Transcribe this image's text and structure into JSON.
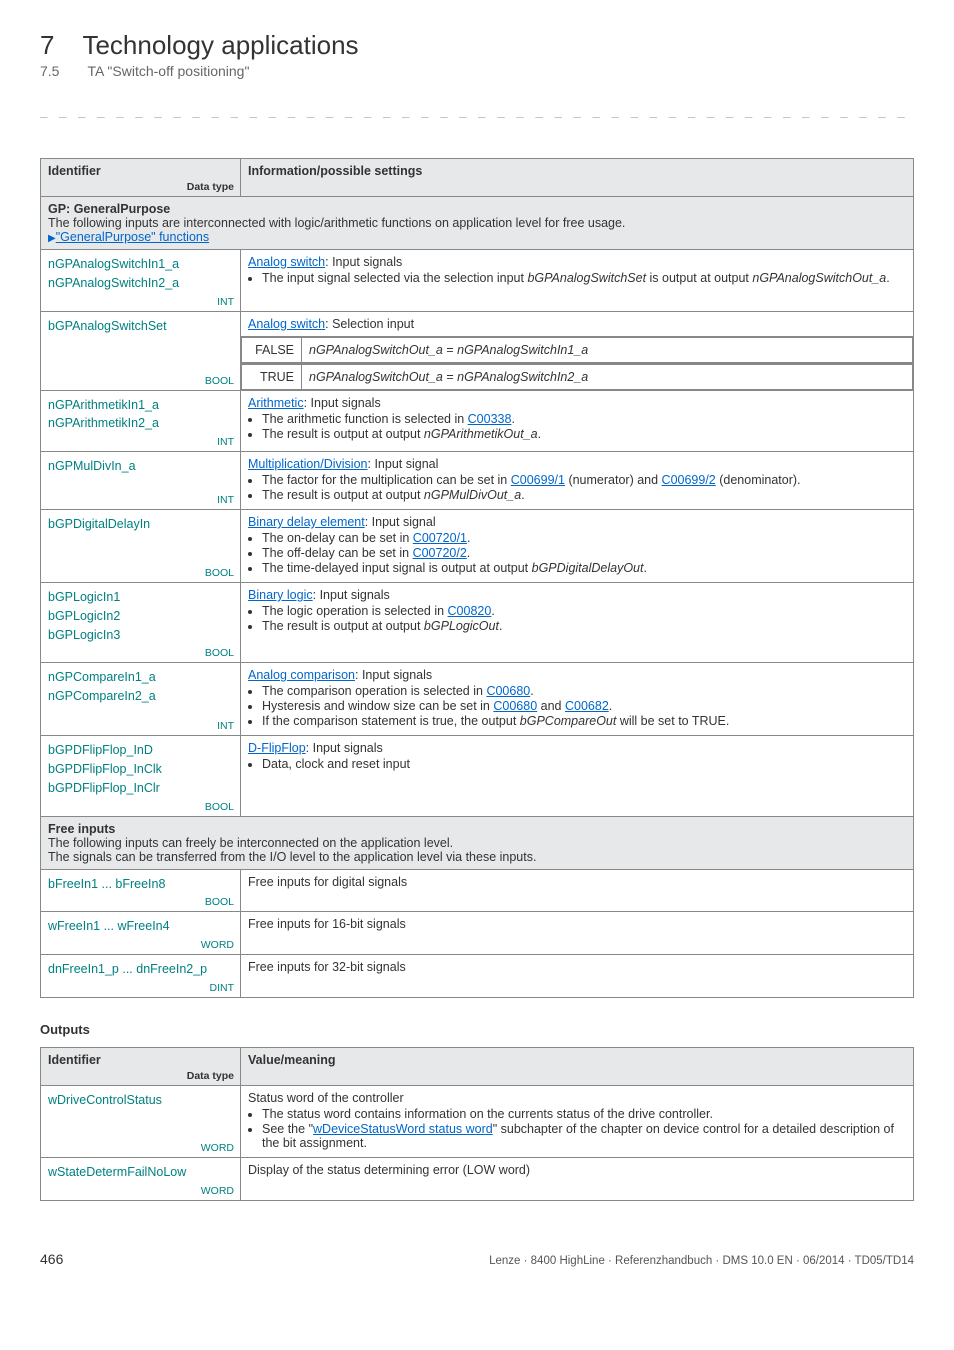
{
  "header": {
    "chapter_num": "7",
    "chapter_title": "Technology applications",
    "section_num": "7.5",
    "section_title": "TA \"Switch-off positioning\""
  },
  "separator": "_ _ _ _ _ _ _ _ _ _ _ _ _ _ _ _ _ _ _ _ _ _ _ _ _ _ _ _ _ _ _ _ _ _ _ _ _ _ _ _ _ _ _ _ _ _ _ _ _ _ _ _ _ _ _ _ _ _ _ _ _ _ _ _",
  "table1": {
    "head_id": "Identifier",
    "head_dt": "Data type",
    "head_info": "Information/possible settings",
    "gp_section": {
      "title": "GP: GeneralPurpose",
      "desc": "The following inputs are interconnected with logic/arithmetic functions on application level for free usage.",
      "link": "\"GeneralPurpose\" functions"
    },
    "rows": {
      "analog_in": {
        "id1": "nGPAnalogSwitchIn1_a",
        "id2": "nGPAnalogSwitchIn2_a",
        "dt": "INT",
        "link": "Analog switch",
        "after_link": ": Input signals",
        "bullet1a": "The input signal selected via the selection input ",
        "bullet1b": "bGPAnalogSwitchSet",
        "bullet1c": " is output at output ",
        "bullet1d": "nGPAnalogSwitchOut_a",
        "bullet1e": "."
      },
      "analog_switchset": {
        "id": "bGPAnalogSwitchSet",
        "dt": "BOOL",
        "link": "Analog switch",
        "after_link": ": Selection input",
        "false_lbl": "FALSE",
        "false_a": "nGPAnalogSwitchOut_a",
        "false_b": " = ",
        "false_c": "nGPAnalogSwitchIn1_a",
        "true_lbl": "TRUE",
        "true_a": "nGPAnalogSwitchOut_a",
        "true_b": " = ",
        "true_c": "nGPAnalogSwitchIn2_a"
      },
      "arith": {
        "id1": "nGPArithmetikIn1_a",
        "id2": "nGPArithmetikIn2_a",
        "dt": "INT",
        "link": "Arithmetic",
        "after_link": ": Input signals",
        "b1a": "The arithmetic function is selected in ",
        "b1link": "C00338",
        "b1c": ".",
        "b2a": "The result is output at output ",
        "b2b": "nGPArithmetikOut_a",
        "b2c": "."
      },
      "muldiv": {
        "id": "nGPMulDivIn_a",
        "dt": "INT",
        "link": "Multiplication/Division",
        "after_link": ": Input signal",
        "b1a": "The factor for the multiplication can be set in ",
        "b1link": "C00699/1",
        "b1c": " (numerator) and ",
        "b1link2": "C00699/2",
        "b1e": " (denominator).",
        "b2a": "The result is output at output ",
        "b2b": "nGPMulDivOut_a",
        "b2c": "."
      },
      "delay": {
        "id": "bGPDigitalDelayIn",
        "dt": "BOOL",
        "link": "Binary delay element",
        "after_link": ": Input signal",
        "b1a": "The on-delay can be set in ",
        "b1link": "C00720/1",
        "b1c": ".",
        "b2a": "The off-delay can be set in ",
        "b2link": "C00720/2",
        "b2c": ".",
        "b3a": "The time-delayed input signal is output at output ",
        "b3b": "bGPDigitalDelayOut",
        "b3c": "."
      },
      "logic": {
        "id1": "bGPLogicIn1",
        "id2": "bGPLogicIn2",
        "id3": "bGPLogicIn3",
        "dt": "BOOL",
        "link": "Binary logic",
        "after_link": ": Input signals",
        "b1a": "The logic operation is selected in ",
        "b1link": "C00820",
        "b1c": ".",
        "b2a": "The result is output at output ",
        "b2b": "bGPLogicOut",
        "b2c": "."
      },
      "compare": {
        "id1": "nGPCompareIn1_a",
        "id2": "nGPCompareIn2_a",
        "dt": "INT",
        "link": "Analog comparison",
        "after_link": ": Input signals",
        "b1a": "The comparison operation is selected in ",
        "b1link": "C00680",
        "b1c": ".",
        "b2a": "Hysteresis and window size can be set in ",
        "b2link1": "C00680",
        "b2mid": " and ",
        "b2link2": "C00682",
        "b2c": ".",
        "b3a": "If the comparison statement is true, the output ",
        "b3b": "bGPCompareOut",
        "b3c": " will be set to TRUE."
      },
      "flipflop": {
        "id1": "bGPDFlipFlop_InD",
        "id2": "bGPDFlipFlop_InClk",
        "id3": "bGPDFlipFlop_InClr",
        "dt": "BOOL",
        "link": "D-FlipFlop",
        "after_link": ": Input signals",
        "b1": "Data, clock and reset input"
      }
    },
    "free_section": {
      "title": "Free inputs",
      "desc1": "The following inputs can freely be interconnected on the application level.",
      "desc2": "The signals can be transferred from the I/O level to the application level via these inputs."
    },
    "free_rows": {
      "r1": {
        "id": "bFreeIn1 ... bFreeIn8",
        "dt": "BOOL",
        "info": "Free inputs for digital signals"
      },
      "r2": {
        "id": "wFreeIn1 ... wFreeIn4",
        "dt": "WORD",
        "info": "Free inputs for 16-bit signals"
      },
      "r3": {
        "id": "dnFreeIn1_p ... dnFreeIn2_p",
        "dt": "DINT",
        "info": "Free inputs for 32-bit signals"
      }
    }
  },
  "outputs_heading": "Outputs",
  "table2": {
    "head_id": "Identifier",
    "head_dt": "Data type",
    "head_info": "Value/meaning",
    "rows": {
      "r1": {
        "id": "wDriveControlStatus",
        "dt": "WORD",
        "line1": "Status word of the controller",
        "b1": "The status word contains information on the currents status of the drive controller.",
        "b2a": "See the \"",
        "b2link": "wDeviceStatusWord status word",
        "b2c": "\" subchapter of the chapter on device control for a detailed description of the bit assignment."
      },
      "r2": {
        "id": "wStateDetermFailNoLow",
        "dt": "WORD",
        "info": "Display of the status determining error (LOW word)"
      }
    }
  },
  "footer": {
    "page": "466",
    "right": "Lenze · 8400 HighLine · Referenzhandbuch · DMS 10.0 EN · 06/2014 · TD05/TD14"
  }
}
